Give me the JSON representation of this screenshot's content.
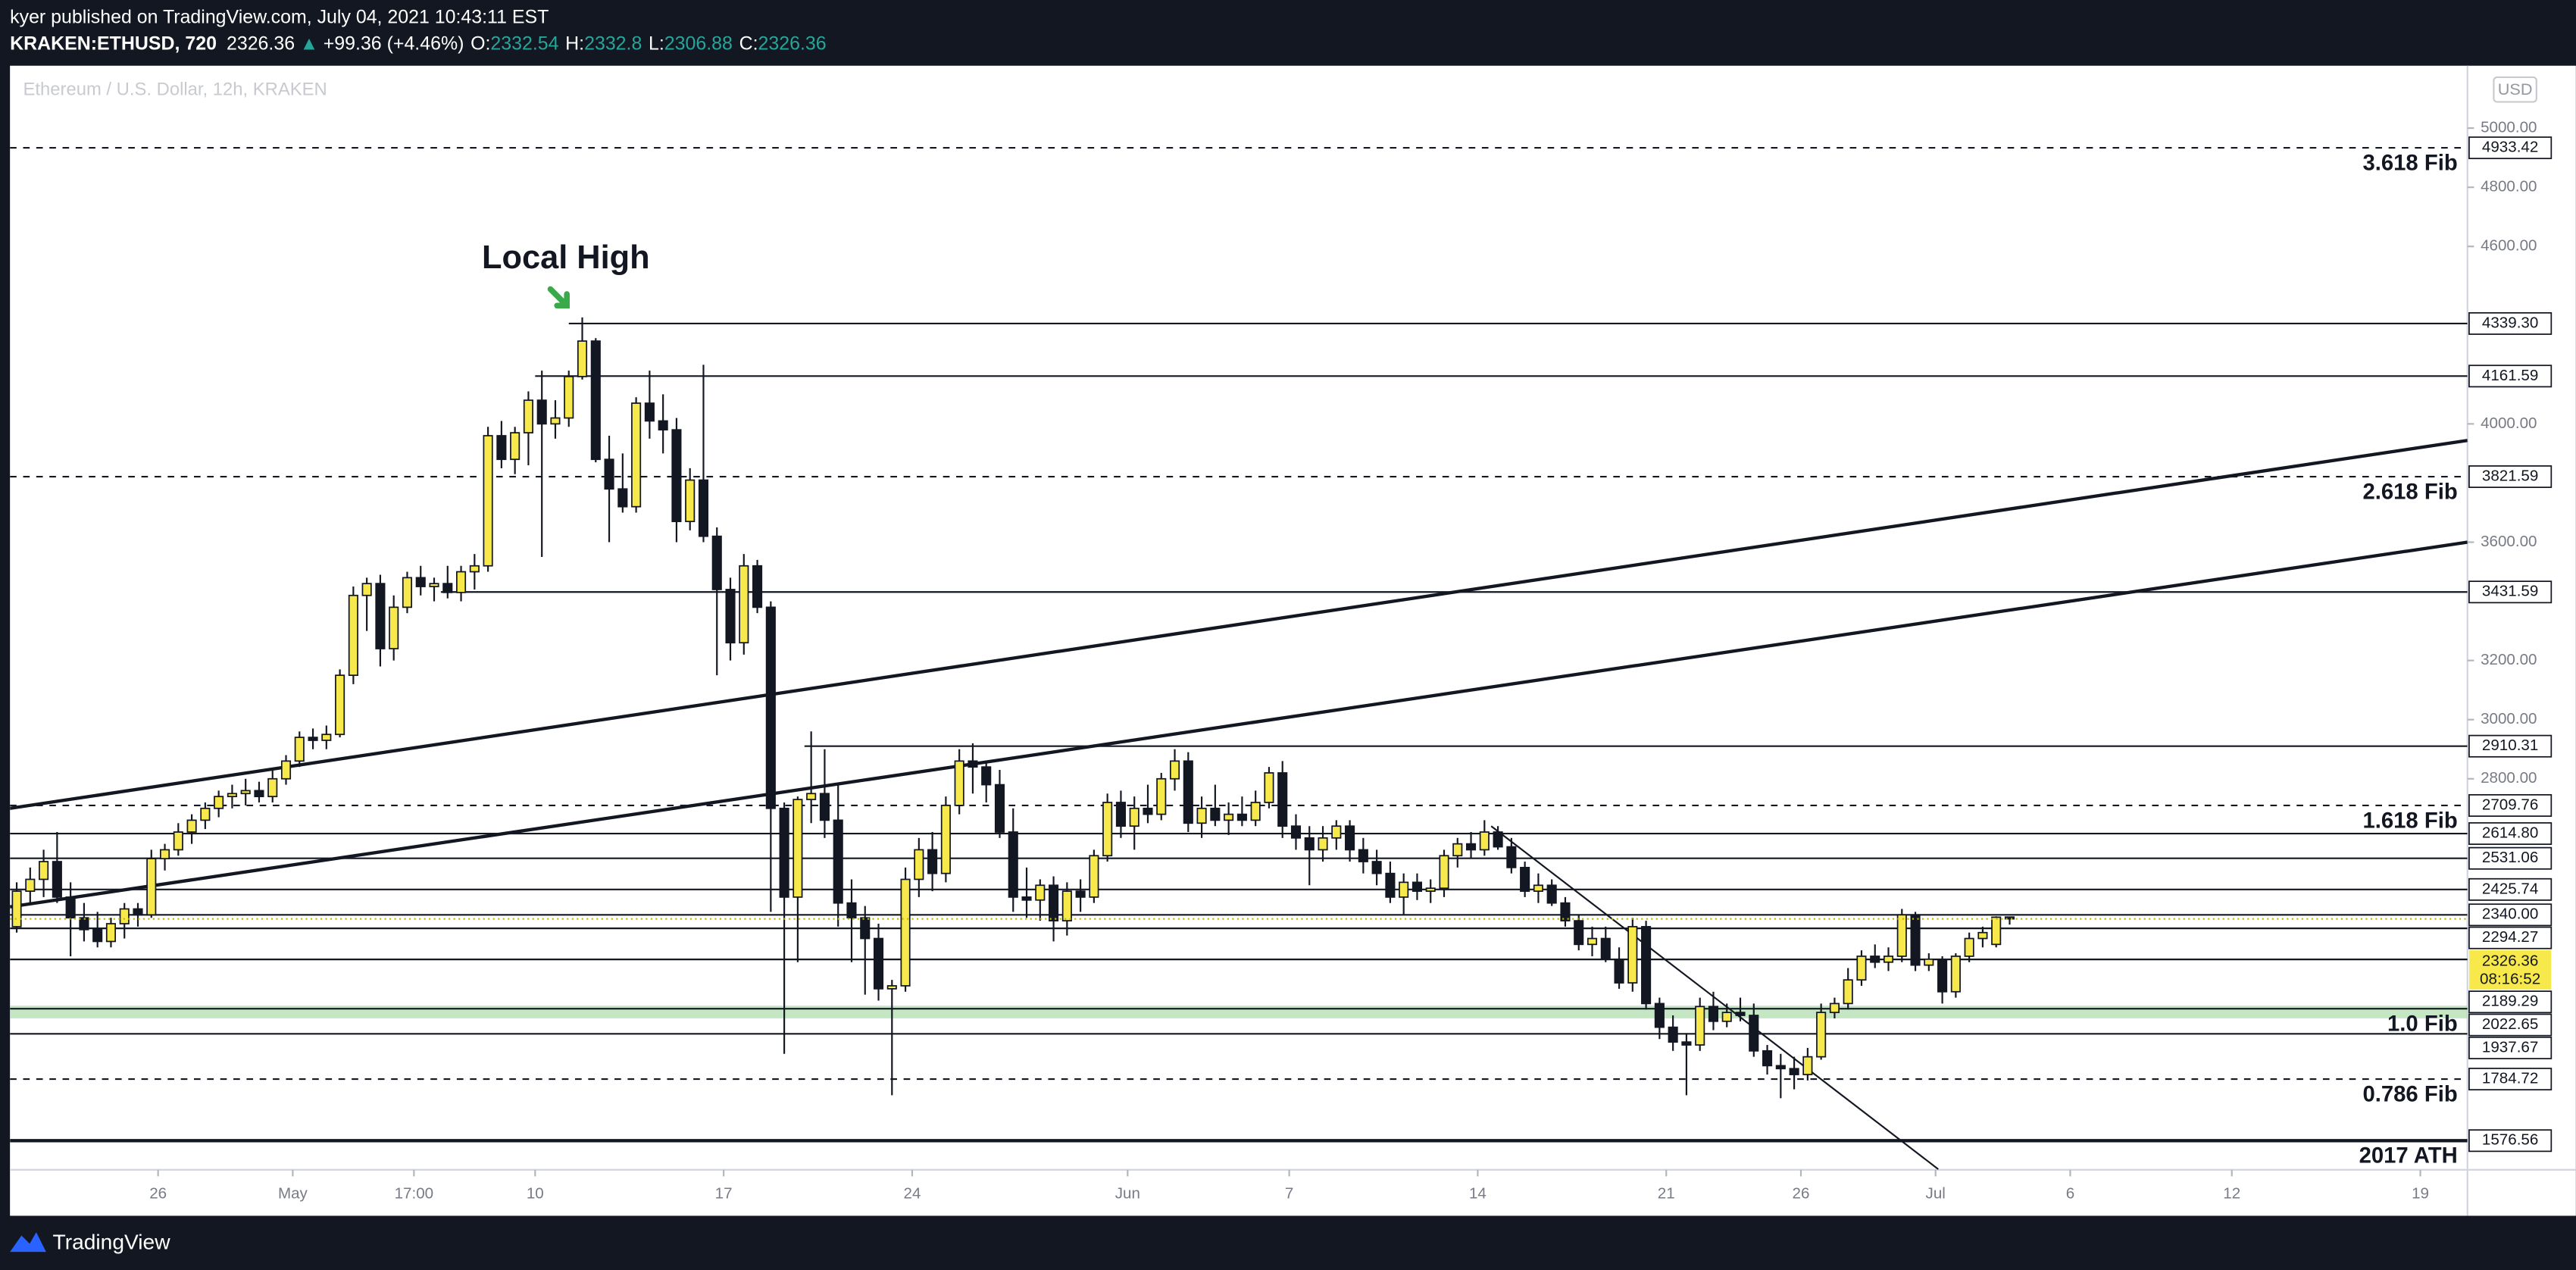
{
  "header": {
    "publisher": "kyer published on TradingView.com, July 04, 2021 10:43:11 EST",
    "symbol": "KRAKEN:ETHUSD, 720",
    "arrow": "▲",
    "change": "+99.36 (+4.46%)",
    "o_label": "O:",
    "h_label": "H:",
    "l_label": "L:",
    "c_label": "C:"
  },
  "footer": {
    "brand": "TradingView"
  },
  "chart_data": {
    "type": "candlestick",
    "title": "Ethereum / U.S. Dollar, 12h, KRAKEN",
    "currency": "USD",
    "up_color": "#f7e94c",
    "down_color": "#131722",
    "ohlc": [
      [
        2300,
        2450,
        2280,
        2420
      ],
      [
        2420,
        2500,
        2380,
        2460
      ],
      [
        2460,
        2560,
        2400,
        2520
      ],
      [
        2520,
        2620,
        2380,
        2400
      ],
      [
        2400,
        2450,
        2200,
        2330
      ],
      [
        2330,
        2380,
        2250,
        2290
      ],
      [
        2290,
        2350,
        2230,
        2250
      ],
      [
        2250,
        2330,
        2230,
        2310
      ],
      [
        2310,
        2380,
        2260,
        2360
      ],
      [
        2360,
        2380,
        2300,
        2340
      ],
      [
        2340,
        2560,
        2330,
        2530
      ],
      [
        2530,
        2580,
        2490,
        2560
      ],
      [
        2560,
        2650,
        2540,
        2620
      ],
      [
        2620,
        2680,
        2580,
        2660
      ],
      [
        2660,
        2720,
        2630,
        2700
      ],
      [
        2700,
        2760,
        2670,
        2740
      ],
      [
        2740,
        2780,
        2700,
        2750
      ],
      [
        2750,
        2800,
        2710,
        2760
      ],
      [
        2760,
        2790,
        2720,
        2740
      ],
      [
        2740,
        2830,
        2720,
        2800
      ],
      [
        2800,
        2880,
        2780,
        2860
      ],
      [
        2860,
        2960,
        2840,
        2940
      ],
      [
        2940,
        2970,
        2900,
        2930
      ],
      [
        2930,
        2980,
        2900,
        2950
      ],
      [
        2950,
        3170,
        2940,
        3150
      ],
      [
        3150,
        3450,
        3120,
        3420
      ],
      [
        3420,
        3480,
        3300,
        3460
      ],
      [
        3460,
        3490,
        3180,
        3240
      ],
      [
        3240,
        3420,
        3200,
        3380
      ],
      [
        3380,
        3500,
        3360,
        3480
      ],
      [
        3480,
        3520,
        3420,
        3450
      ],
      [
        3450,
        3480,
        3400,
        3460
      ],
      [
        3460,
        3520,
        3410,
        3430
      ],
      [
        3430,
        3520,
        3400,
        3500
      ],
      [
        3500,
        3560,
        3440,
        3520
      ],
      [
        3520,
        3990,
        3500,
        3960
      ],
      [
        3960,
        4010,
        3850,
        3880
      ],
      [
        3880,
        3990,
        3830,
        3970
      ],
      [
        3970,
        4110,
        3860,
        4080
      ],
      [
        4080,
        4180,
        3550,
        4000
      ],
      [
        4000,
        4080,
        3950,
        4020
      ],
      [
        4020,
        4180,
        3990,
        4160
      ],
      [
        4160,
        4360,
        4150,
        4280
      ],
      [
        4280,
        4290,
        3870,
        3880
      ],
      [
        3880,
        3960,
        3600,
        3780
      ],
      [
        3780,
        3900,
        3700,
        3720
      ],
      [
        3720,
        4090,
        3700,
        4070
      ],
      [
        4070,
        4180,
        3950,
        4010
      ],
      [
        4010,
        4100,
        3900,
        3980
      ],
      [
        3980,
        4020,
        3600,
        3670
      ],
      [
        3670,
        3850,
        3640,
        3810
      ],
      [
        3810,
        4200,
        3600,
        3620
      ],
      [
        3620,
        3650,
        3150,
        3440
      ],
      [
        3440,
        3480,
        3200,
        3260
      ],
      [
        3260,
        3560,
        3220,
        3520
      ],
      [
        3520,
        3540,
        3360,
        3380
      ],
      [
        3380,
        3400,
        2350,
        2700
      ],
      [
        2700,
        2720,
        1870,
        2400
      ],
      [
        2400,
        2740,
        2180,
        2730
      ],
      [
        2730,
        2960,
        2650,
        2750
      ],
      [
        2750,
        2900,
        2600,
        2660
      ],
      [
        2660,
        2780,
        2300,
        2380
      ],
      [
        2380,
        2460,
        2180,
        2330
      ],
      [
        2330,
        2370,
        2070,
        2260
      ],
      [
        2260,
        2310,
        2050,
        2090
      ],
      [
        2090,
        2120,
        1730,
        2100
      ],
      [
        2100,
        2500,
        2080,
        2460
      ],
      [
        2460,
        2600,
        2400,
        2560
      ],
      [
        2560,
        2620,
        2420,
        2480
      ],
      [
        2480,
        2740,
        2450,
        2710
      ],
      [
        2710,
        2900,
        2680,
        2860
      ],
      [
        2860,
        2920,
        2750,
        2840
      ],
      [
        2840,
        2860,
        2720,
        2780
      ],
      [
        2780,
        2830,
        2600,
        2620
      ],
      [
        2620,
        2700,
        2350,
        2400
      ],
      [
        2400,
        2500,
        2330,
        2390
      ],
      [
        2390,
        2460,
        2320,
        2440
      ],
      [
        2440,
        2470,
        2250,
        2320
      ],
      [
        2320,
        2450,
        2270,
        2420
      ],
      [
        2420,
        2460,
        2350,
        2400
      ],
      [
        2400,
        2560,
        2380,
        2540
      ],
      [
        2540,
        2750,
        2520,
        2720
      ],
      [
        2720,
        2760,
        2600,
        2640
      ],
      [
        2640,
        2740,
        2560,
        2700
      ],
      [
        2700,
        2780,
        2650,
        2680
      ],
      [
        2680,
        2820,
        2660,
        2800
      ],
      [
        2800,
        2900,
        2760,
        2860
      ],
      [
        2860,
        2890,
        2620,
        2650
      ],
      [
        2650,
        2740,
        2600,
        2700
      ],
      [
        2700,
        2780,
        2640,
        2660
      ],
      [
        2660,
        2720,
        2610,
        2680
      ],
      [
        2680,
        2740,
        2640,
        2660
      ],
      [
        2660,
        2760,
        2640,
        2720
      ],
      [
        2720,
        2840,
        2700,
        2820
      ],
      [
        2820,
        2860,
        2600,
        2640
      ],
      [
        2640,
        2680,
        2560,
        2600
      ],
      [
        2600,
        2640,
        2440,
        2560
      ],
      [
        2560,
        2640,
        2520,
        2600
      ],
      [
        2600,
        2660,
        2560,
        2640
      ],
      [
        2640,
        2660,
        2520,
        2560
      ],
      [
        2560,
        2600,
        2480,
        2520
      ],
      [
        2520,
        2560,
        2440,
        2480
      ],
      [
        2480,
        2520,
        2380,
        2400
      ],
      [
        2400,
        2480,
        2340,
        2450
      ],
      [
        2450,
        2480,
        2390,
        2420
      ],
      [
        2420,
        2460,
        2380,
        2430
      ],
      [
        2430,
        2560,
        2400,
        2540
      ],
      [
        2540,
        2600,
        2500,
        2580
      ],
      [
        2580,
        2620,
        2530,
        2560
      ],
      [
        2560,
        2660,
        2540,
        2620
      ],
      [
        2620,
        2640,
        2560,
        2570
      ],
      [
        2570,
        2600,
        2480,
        2500
      ],
      [
        2500,
        2520,
        2400,
        2420
      ],
      [
        2420,
        2480,
        2380,
        2440
      ],
      [
        2440,
        2460,
        2370,
        2380
      ],
      [
        2380,
        2400,
        2300,
        2320
      ],
      [
        2320,
        2340,
        2220,
        2240
      ],
      [
        2240,
        2300,
        2200,
        2260
      ],
      [
        2260,
        2300,
        2180,
        2190
      ],
      [
        2190,
        2230,
        2090,
        2110
      ],
      [
        2110,
        2330,
        2080,
        2300
      ],
      [
        2300,
        2320,
        2020,
        2040
      ],
      [
        2040,
        2060,
        1920,
        1960
      ],
      [
        1960,
        2000,
        1880,
        1910
      ],
      [
        1910,
        1940,
        1730,
        1900
      ],
      [
        1900,
        2060,
        1880,
        2030
      ],
      [
        2030,
        2080,
        1950,
        1980
      ],
      [
        1980,
        2040,
        1960,
        2010
      ],
      [
        2010,
        2060,
        1980,
        2000
      ],
      [
        2000,
        2040,
        1860,
        1880
      ],
      [
        1880,
        1900,
        1800,
        1830
      ],
      [
        1830,
        1870,
        1720,
        1820
      ],
      [
        1820,
        1860,
        1750,
        1800
      ],
      [
        1800,
        1890,
        1780,
        1860
      ],
      [
        1860,
        2040,
        1850,
        2010
      ],
      [
        2010,
        2060,
        1990,
        2040
      ],
      [
        2040,
        2160,
        2020,
        2120
      ],
      [
        2120,
        2220,
        2100,
        2200
      ],
      [
        2200,
        2240,
        2160,
        2180
      ],
      [
        2180,
        2230,
        2150,
        2200
      ],
      [
        2200,
        2360,
        2180,
        2340
      ],
      [
        2340,
        2350,
        2150,
        2170
      ],
      [
        2170,
        2210,
        2150,
        2190
      ],
      [
        2190,
        2200,
        2040,
        2080
      ],
      [
        2080,
        2210,
        2060,
        2200
      ],
      [
        2200,
        2280,
        2180,
        2260
      ],
      [
        2260,
        2300,
        2230,
        2280
      ],
      [
        2240,
        2335,
        2230,
        2332
      ],
      [
        2332.54,
        2332.8,
        2306.88,
        2326.36
      ]
    ],
    "countdown": "08:16:52",
    "xlim": [
      -0.5,
      182
    ],
    "xticks": [
      {
        "value": 10.5,
        "label": "26"
      },
      {
        "value": 20.5,
        "label": "May"
      },
      {
        "value": 29.5,
        "label": "17:00"
      },
      {
        "value": 38.5,
        "label": "10"
      },
      {
        "value": 52.5,
        "label": "17"
      },
      {
        "value": 66.5,
        "label": "24"
      },
      {
        "value": 82.5,
        "label": "Jun"
      },
      {
        "value": 94.5,
        "label": "7"
      },
      {
        "value": 108.5,
        "label": "14"
      },
      {
        "value": 122.5,
        "label": "21"
      },
      {
        "value": 132.5,
        "label": "26"
      },
      {
        "value": 142.5,
        "label": "Jul"
      },
      {
        "value": 152.5,
        "label": "6"
      },
      {
        "value": 164.5,
        "label": "12"
      },
      {
        "value": 178.5,
        "label": "19"
      }
    ],
    "ylim": [
      1478,
      5211
    ],
    "yticks": [
      {
        "value": 5000,
        "label": "5000.00"
      },
      {
        "value": 4800,
        "label": "4800.00"
      },
      {
        "value": 4600,
        "label": "4600.00"
      },
      {
        "value": 4000,
        "label": "4000.00"
      },
      {
        "value": 3600,
        "label": "3600.00"
      },
      {
        "value": 3200,
        "label": "3200.00"
      },
      {
        "value": 3000,
        "label": "3000.00"
      },
      {
        "value": 2800,
        "label": "2800.00"
      }
    ],
    "grid": false,
    "levels": [
      {
        "value": 4933.42,
        "value_label": "4933.42",
        "name": "3.618 Fib",
        "style": "dashed"
      },
      {
        "value": 4339.3,
        "value_label": "4339.30",
        "x_start": 41,
        "style": "solid"
      },
      {
        "value": 4161.59,
        "value_label": "4161.59",
        "x_start": 38.5,
        "style": "solid"
      },
      {
        "value": 3821.59,
        "value_label": "3821.59",
        "name": "2.618 Fib",
        "style": "dashed"
      },
      {
        "value": 3431.59,
        "value_label": "3431.59",
        "x_start": 31.5,
        "style": "solid"
      },
      {
        "value": 2910.31,
        "value_label": "2910.31",
        "x_start": 58.5,
        "style": "solid"
      },
      {
        "value": 2709.76,
        "value_label": "2709.76",
        "name": "1.618 Fib",
        "style": "dashed"
      },
      {
        "value": 2614.8,
        "value_label": "2614.80",
        "style": "solid"
      },
      {
        "value": 2531.06,
        "value_label": "2531.06",
        "style": "solid"
      },
      {
        "value": 2425.74,
        "value_label": "2425.74",
        "style": "solid"
      },
      {
        "value": 2340,
        "value_label": "2340.00",
        "style": "solid"
      },
      {
        "value": 2294.27,
        "value_label": "2294.27",
        "style": "solid"
      },
      {
        "value": 2189.29,
        "value_label": "2189.29",
        "style": "solid"
      },
      {
        "value": 2022.65,
        "value_label": "2022.65",
        "name": "1.0 Fib",
        "style": "solid"
      },
      {
        "value": 1937.67,
        "value_label": "1937.67",
        "style": "solid"
      },
      {
        "value": 1784.72,
        "value_label": "1784.72",
        "name": "0.786 Fib",
        "style": "dashed"
      },
      {
        "value": 1576.56,
        "value_label": "1576.56",
        "name": "2017 ATH",
        "style": "thick"
      }
    ],
    "zone": {
      "values": [
        1990,
        2033
      ],
      "color": "#9fd69a"
    },
    "trendlines": [
      {
        "x": [
          -0.5,
          182
        ],
        "y": [
          2700,
          3944
        ]
      },
      {
        "x": [
          -0.5,
          182
        ],
        "y": [
          2367,
          3600
        ]
      },
      {
        "x": [
          109.5,
          142.7
        ],
        "y": [
          2640,
          1480
        ]
      }
    ],
    "annotation": {
      "text": "Local High",
      "x": 42
    }
  }
}
